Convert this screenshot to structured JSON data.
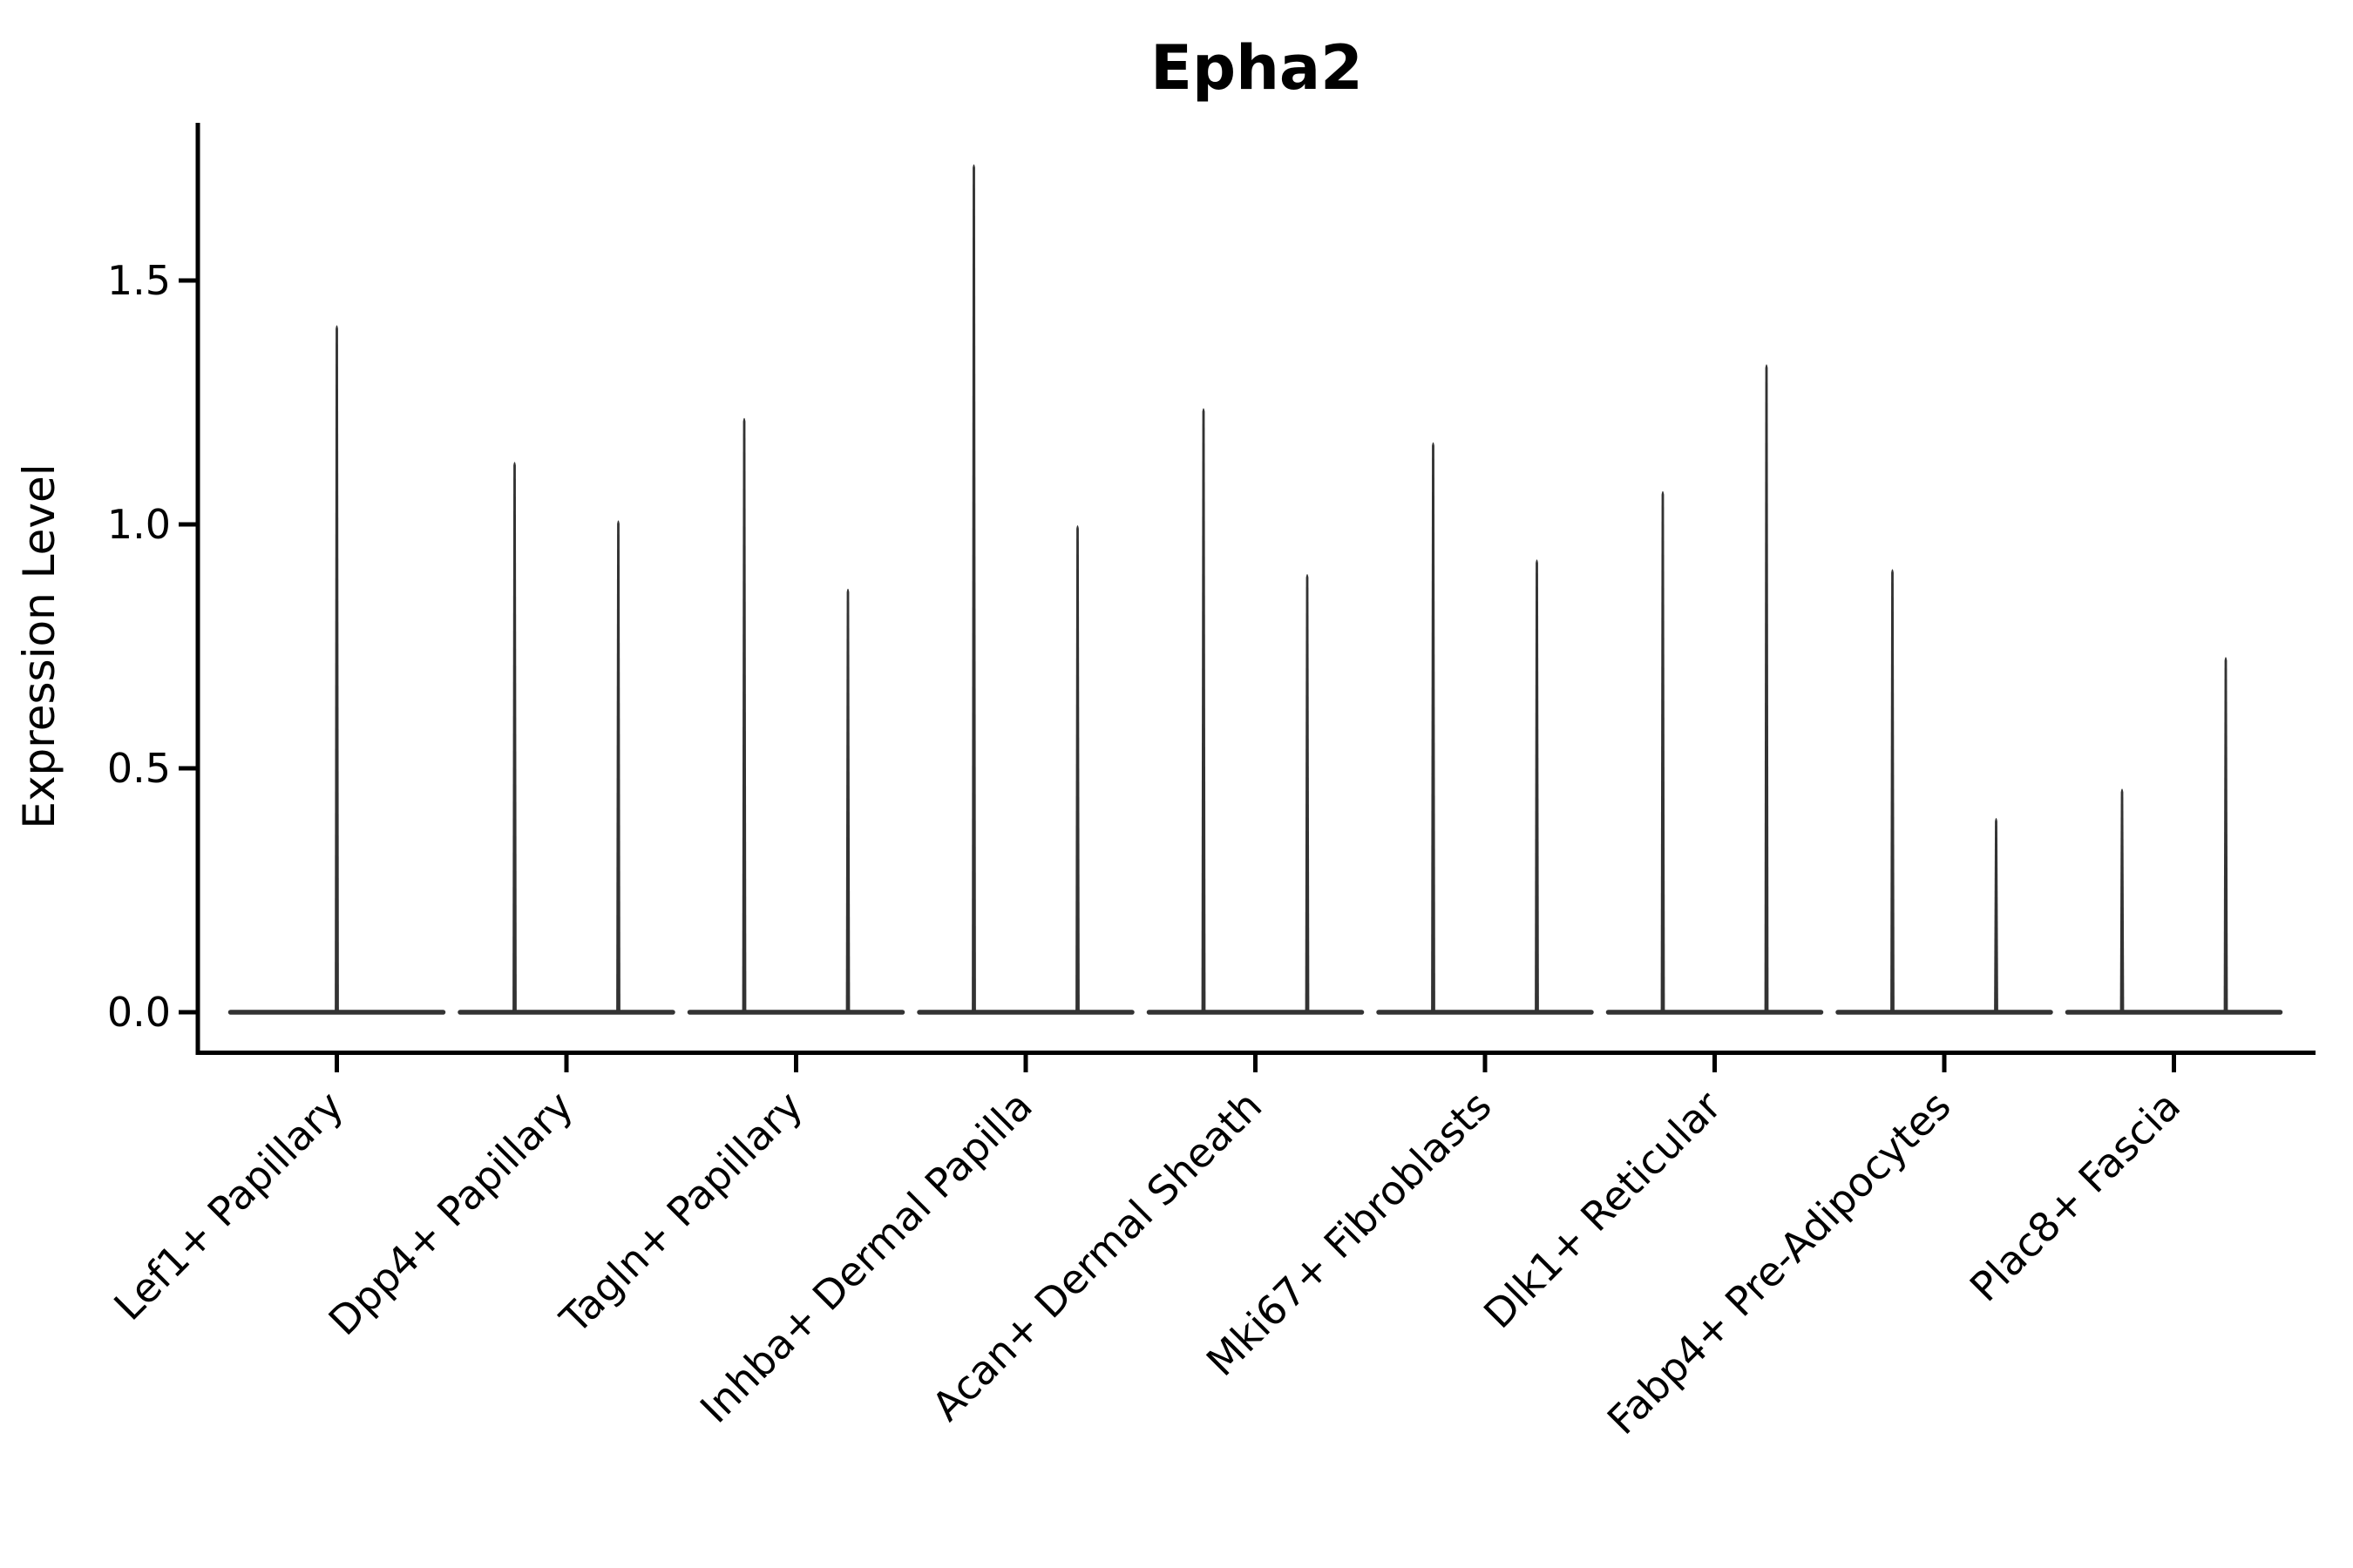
{
  "figure": {
    "background_color": "#ffffff",
    "text_color": "#000000"
  },
  "chart_data": {
    "type": "violin",
    "title": "Epha2",
    "ylabel": "Expression Level",
    "xlabel": "",
    "yticks": [
      0.0,
      0.5,
      1.0,
      1.5
    ],
    "ytick_labels": [
      "0.0",
      "0.5",
      "1.0",
      "1.5"
    ],
    "ylim": [
      -0.08,
      1.82
    ],
    "grid": false,
    "legend": false,
    "violin_color": "#333333",
    "axis_color": "#000000",
    "violin_baseline_value": 0.0,
    "categories": [
      "Lef1+ Papillary",
      "Dpp4+ Papillary",
      "Tagln+ Papillary",
      "Inhba+ Dermal Papilla",
      "Acan+ Dermal Sheath",
      "Mki67+ Fibroblasts",
      "Dlk1+ Reticular",
      "Fabp4+ Pre-Adipocytes",
      "Plac8+ Fascia"
    ],
    "series": [
      {
        "category": "Lef1+ Papillary",
        "violin_max_values": [
          1.41
        ]
      },
      {
        "category": "Dpp4+ Papillary",
        "violin_max_values": [
          1.13,
          1.01
        ]
      },
      {
        "category": "Tagln+ Papillary",
        "violin_max_values": [
          1.22,
          0.87
        ]
      },
      {
        "category": "Inhba+ Dermal Papilla",
        "violin_max_values": [
          1.74,
          1.0
        ]
      },
      {
        "category": "Acan+ Dermal Sheath",
        "violin_max_values": [
          1.24,
          0.9
        ]
      },
      {
        "category": "Mki67+ Fibroblasts",
        "violin_max_values": [
          1.17,
          0.93
        ]
      },
      {
        "category": "Dlk1+ Reticular",
        "violin_max_values": [
          1.07,
          1.33
        ]
      },
      {
        "category": "Fabp4+ Pre-Adipocytes",
        "violin_max_values": [
          0.91,
          0.4
        ]
      },
      {
        "category": "Plac8+ Fascia",
        "violin_max_values": [
          0.46,
          0.73
        ]
      }
    ]
  }
}
